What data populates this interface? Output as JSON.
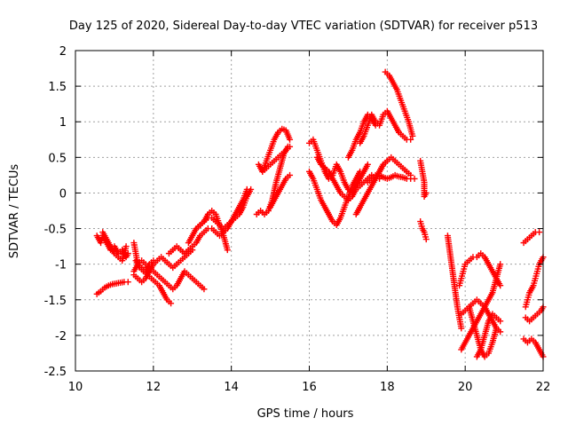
{
  "chart_data": {
    "type": "scatter",
    "title": "Day 125 of 2020, Sidereal Day-to-day VTEC variation (SDTVAR) for receiver p513",
    "xlabel": "GPS time / hours",
    "ylabel": "SDTVAR / TECUs",
    "xlim": [
      10,
      22
    ],
    "ylim": [
      -2.5,
      2
    ],
    "x_ticks": [
      10,
      12,
      14,
      16,
      18,
      20,
      22
    ],
    "x_tick_labels": [
      "10",
      "12",
      "14",
      "16",
      "18",
      "20",
      "22"
    ],
    "y_ticks": [
      -2.5,
      -2,
      -1.5,
      -1,
      -0.5,
      0,
      0.5,
      1,
      1.5,
      2
    ],
    "y_tick_labels": [
      "-2.5",
      "-2",
      "-1.5",
      "-1",
      "-0.5",
      "0",
      "0.5",
      "1",
      "1.5",
      "2"
    ],
    "grid": true,
    "marker": "+",
    "color": "#ff0000",
    "series": [
      {
        "name": "s1",
        "x": [
          10.55,
          10.6,
          10.65,
          10.7,
          10.8,
          10.9,
          11.0,
          11.1,
          11.2,
          11.3,
          11.35
        ],
        "y": [
          -0.6,
          -0.65,
          -0.7,
          -0.6,
          -0.7,
          -0.8,
          -0.75,
          -0.85,
          -0.8,
          -0.9,
          -0.85
        ]
      },
      {
        "name": "s2",
        "x": [
          10.55,
          10.65,
          10.75,
          10.85,
          10.95,
          11.05,
          11.15,
          11.25,
          11.35
        ],
        "y": [
          -1.42,
          -1.38,
          -1.33,
          -1.3,
          -1.28,
          -1.27,
          -1.26,
          -1.25,
          -1.25
        ]
      },
      {
        "name": "s3",
        "x": [
          10.7,
          10.8,
          10.9,
          11.0,
          11.1,
          11.2,
          11.3
        ],
        "y": [
          -0.55,
          -0.65,
          -0.75,
          -0.85,
          -0.9,
          -0.95,
          -0.75
        ]
      },
      {
        "name": "s4",
        "x": [
          11.5,
          11.6,
          11.7,
          11.8,
          11.9,
          12.0,
          12.1,
          12.2,
          12.3,
          12.4,
          12.5,
          12.6,
          12.7,
          12.8,
          12.9,
          13.0,
          13.1,
          13.2,
          13.3
        ],
        "y": [
          -1.1,
          -1.0,
          -0.95,
          -1.0,
          -1.05,
          -1.1,
          -1.15,
          -1.2,
          -1.25,
          -1.3,
          -1.35,
          -1.3,
          -1.2,
          -1.1,
          -1.15,
          -1.2,
          -1.25,
          -1.3,
          -1.35
        ]
      },
      {
        "name": "s5",
        "x": [
          11.5,
          11.6,
          11.7,
          11.8,
          11.9,
          12.0,
          12.1,
          12.2,
          12.3,
          12.4,
          12.5,
          12.6,
          12.7,
          12.8,
          12.9,
          13.0
        ],
        "y": [
          -1.15,
          -1.2,
          -1.25,
          -1.2,
          -1.1,
          -1.0,
          -0.95,
          -0.9,
          -0.95,
          -1.0,
          -1.05,
          -1.0,
          -0.95,
          -0.9,
          -0.85,
          -0.8
        ]
      },
      {
        "name": "s6",
        "x": [
          11.55,
          11.65,
          11.75,
          11.85,
          11.95,
          12.05,
          12.15,
          12.25,
          12.35,
          12.45
        ],
        "y": [
          -0.95,
          -1.05,
          -1.1,
          -1.15,
          -1.2,
          -1.25,
          -1.3,
          -1.4,
          -1.5,
          -1.55
        ]
      },
      {
        "name": "s7",
        "x": [
          11.5,
          11.55,
          11.6,
          11.7,
          11.8,
          11.9,
          12.0
        ],
        "y": [
          -0.7,
          -0.85,
          -1.0,
          -1.05,
          -1.1,
          -1.0,
          -0.95
        ]
      },
      {
        "name": "s8",
        "x": [
          12.4,
          12.5,
          12.6,
          12.7,
          12.8,
          12.9,
          13.0,
          13.1,
          13.2,
          13.3,
          13.4,
          13.5,
          13.6,
          13.7,
          13.8,
          13.9,
          14.0,
          14.1,
          14.2,
          14.3,
          14.4
        ],
        "y": [
          -0.85,
          -0.8,
          -0.75,
          -0.8,
          -0.85,
          -0.8,
          -0.75,
          -0.7,
          -0.6,
          -0.55,
          -0.5,
          -0.5,
          -0.55,
          -0.6,
          -0.55,
          -0.5,
          -0.4,
          -0.3,
          -0.2,
          -0.1,
          0.05
        ]
      },
      {
        "name": "s9",
        "x": [
          13.1,
          13.2,
          13.3,
          13.4,
          13.5,
          13.6,
          13.7,
          13.8,
          13.9,
          14.0,
          14.1,
          14.2,
          14.3,
          14.4,
          14.5
        ],
        "y": [
          -0.5,
          -0.45,
          -0.4,
          -0.35,
          -0.35,
          -0.4,
          -0.45,
          -0.5,
          -0.45,
          -0.4,
          -0.35,
          -0.3,
          -0.2,
          -0.05,
          0.05
        ]
      },
      {
        "name": "s10",
        "x": [
          12.9,
          13.0,
          13.1,
          13.2,
          13.3,
          13.4,
          13.5,
          13.6,
          13.7,
          13.8,
          13.9
        ],
        "y": [
          -0.7,
          -0.6,
          -0.5,
          -0.45,
          -0.4,
          -0.3,
          -0.25,
          -0.3,
          -0.45,
          -0.6,
          -0.8
        ]
      },
      {
        "name": "s11",
        "x": [
          14.65,
          14.75,
          14.85,
          14.95,
          15.05,
          15.15,
          15.25,
          15.35,
          15.45
        ],
        "y": [
          -0.3,
          -0.25,
          -0.3,
          -0.25,
          -0.1,
          0.15,
          0.35,
          0.55,
          0.65
        ]
      },
      {
        "name": "s12",
        "x": [
          14.7,
          14.8,
          14.9,
          15.0,
          15.1,
          15.2,
          15.3,
          15.4,
          15.5
        ],
        "y": [
          0.4,
          0.3,
          0.45,
          0.6,
          0.75,
          0.85,
          0.9,
          0.88,
          0.75
        ]
      },
      {
        "name": "s13",
        "x": [
          14.8,
          14.9,
          15.0,
          15.1,
          15.2,
          15.3,
          15.4,
          15.5
        ],
        "y": [
          0.3,
          0.35,
          0.4,
          0.45,
          0.5,
          0.55,
          0.6,
          0.65
        ]
      },
      {
        "name": "s14",
        "x": [
          15.0,
          15.1,
          15.2,
          15.3,
          15.4,
          15.5
        ],
        "y": [
          -0.2,
          -0.1,
          0.0,
          0.1,
          0.2,
          0.25
        ]
      },
      {
        "name": "s15",
        "x": [
          16.0,
          16.1,
          16.2,
          16.3,
          16.4,
          16.5,
          16.6,
          16.7,
          16.8,
          16.9,
          17.0,
          17.1,
          17.2,
          17.3,
          17.4,
          17.5
        ],
        "y": [
          0.7,
          0.75,
          0.6,
          0.45,
          0.3,
          0.2,
          0.25,
          0.4,
          0.3,
          0.15,
          0.05,
          0.0,
          0.1,
          0.2,
          0.3,
          0.4
        ]
      },
      {
        "name": "s16",
        "x": [
          16.0,
          16.1,
          16.2,
          16.3,
          16.4,
          16.5,
          16.6,
          16.7,
          16.8,
          16.9,
          17.0,
          17.1,
          17.2,
          17.3
        ],
        "y": [
          0.3,
          0.2,
          0.05,
          -0.1,
          -0.2,
          -0.3,
          -0.4,
          -0.45,
          -0.35,
          -0.2,
          -0.05,
          0.1,
          0.2,
          0.3
        ]
      },
      {
        "name": "s17",
        "x": [
          16.2,
          16.3,
          16.4,
          16.5,
          16.6,
          16.7,
          16.8,
          16.9,
          17.0,
          17.1,
          17.2,
          17.3,
          17.4,
          17.5,
          17.6,
          17.7,
          17.8
        ],
        "y": [
          0.5,
          0.4,
          0.35,
          0.3,
          0.2,
          0.1,
          0.0,
          -0.05,
          -0.1,
          -0.05,
          0.05,
          0.1,
          0.15,
          0.2,
          0.25,
          0.2,
          0.2
        ]
      },
      {
        "name": "s18",
        "x": [
          17.3,
          17.4,
          17.5,
          17.6,
          17.7,
          17.8,
          17.9,
          18.0,
          18.1,
          18.2,
          18.3,
          18.4,
          18.5,
          18.6
        ],
        "y": [
          0.7,
          0.8,
          0.95,
          1.1,
          1.0,
          0.95,
          1.1,
          1.15,
          1.05,
          0.95,
          0.85,
          0.8,
          0.75,
          0.75
        ]
      },
      {
        "name": "s19",
        "x": [
          17.0,
          17.1,
          17.2,
          17.3,
          17.4,
          17.5,
          17.6,
          17.7
        ],
        "y": [
          0.5,
          0.6,
          0.75,
          0.85,
          1.0,
          1.1,
          1.05,
          0.95
        ]
      },
      {
        "name": "s20",
        "x": [
          17.8,
          17.9,
          18.0,
          18.1,
          18.2,
          18.3,
          18.4,
          18.5,
          18.6
        ],
        "y": [
          0.3,
          0.4,
          0.45,
          0.5,
          0.45,
          0.4,
          0.35,
          0.3,
          0.25
        ]
      },
      {
        "name": "s21",
        "x": [
          17.5,
          17.6,
          17.7,
          17.8,
          17.9,
          18.0,
          18.1,
          18.2,
          18.3,
          18.4,
          18.5,
          18.6,
          18.7
        ],
        "y": [
          0.15,
          0.2,
          0.25,
          0.25,
          0.22,
          0.2,
          0.22,
          0.25,
          0.23,
          0.22,
          0.2,
          0.2,
          0.2
        ]
      },
      {
        "name": "s22",
        "x": [
          17.2,
          17.3,
          17.4,
          17.5,
          17.6,
          17.7,
          17.8,
          17.9,
          18.0
        ],
        "y": [
          -0.3,
          -0.2,
          -0.1,
          0.0,
          0.1,
          0.2,
          0.3,
          0.4,
          0.45
        ]
      },
      {
        "name": "s23",
        "x": [
          17.95,
          18.05,
          18.15,
          18.25,
          18.35,
          18.45,
          18.55,
          18.65
        ],
        "y": [
          1.7,
          1.65,
          1.55,
          1.45,
          1.3,
          1.15,
          1.0,
          0.8
        ]
      },
      {
        "name": "s24",
        "x": [
          18.85,
          18.9,
          18.95,
          18.95,
          19.0
        ],
        "y": [
          0.45,
          0.3,
          0.15,
          -0.05,
          0.0
        ]
      },
      {
        "name": "s25",
        "x": [
          18.85,
          18.9,
          18.95,
          19.0
        ],
        "y": [
          -0.4,
          -0.5,
          -0.55,
          -0.65
        ]
      },
      {
        "name": "s26",
        "x": [
          19.55,
          19.6,
          19.65,
          19.7,
          19.75,
          19.8,
          19.85,
          19.9
        ],
        "y": [
          -0.6,
          -0.8,
          -1.0,
          -1.2,
          -1.4,
          -1.6,
          -1.75,
          -1.9
        ]
      },
      {
        "name": "s27",
        "x": [
          19.85,
          19.9,
          19.95,
          20.0,
          20.1,
          20.2,
          20.3,
          20.4,
          20.5,
          20.6,
          20.7,
          20.8,
          20.9
        ],
        "y": [
          -1.3,
          -1.2,
          -1.1,
          -1.0,
          -0.95,
          -0.9,
          -0.9,
          -0.85,
          -0.9,
          -1.0,
          -1.1,
          -1.2,
          -1.3
        ]
      },
      {
        "name": "s28",
        "x": [
          19.9,
          20.0,
          20.1,
          20.2,
          20.3,
          20.4,
          20.5,
          20.6,
          20.7,
          20.8,
          20.9
        ],
        "y": [
          -1.7,
          -1.65,
          -1.6,
          -1.55,
          -1.5,
          -1.55,
          -1.6,
          -1.7,
          -1.8,
          -1.9,
          -1.95
        ]
      },
      {
        "name": "s29",
        "x": [
          19.9,
          20.0,
          20.1,
          20.2,
          20.3,
          20.4,
          20.5,
          20.6,
          20.7,
          20.8,
          20.9
        ],
        "y": [
          -2.2,
          -2.1,
          -2.0,
          -1.9,
          -1.8,
          -1.7,
          -1.6,
          -1.5,
          -1.4,
          -1.2,
          -1.0
        ]
      },
      {
        "name": "s30",
        "x": [
          20.1,
          20.2,
          20.3,
          20.4,
          20.5,
          20.6,
          20.7,
          20.8
        ],
        "y": [
          -1.6,
          -1.8,
          -2.0,
          -2.2,
          -2.3,
          -2.25,
          -2.1,
          -1.9
        ]
      },
      {
        "name": "s31",
        "x": [
          20.3,
          20.4,
          20.5,
          20.6,
          20.7,
          20.8,
          20.9
        ],
        "y": [
          -2.3,
          -2.2,
          -2.0,
          -1.8,
          -1.7,
          -1.75,
          -1.8
        ]
      },
      {
        "name": "s32",
        "x": [
          21.5,
          21.6,
          21.7,
          21.8,
          21.9
        ],
        "y": [
          -0.7,
          -0.65,
          -0.6,
          -0.55,
          -0.55
        ]
      },
      {
        "name": "s33",
        "x": [
          21.55,
          21.6,
          21.65,
          21.7,
          21.75,
          21.8,
          21.85,
          21.9,
          21.95,
          22.0
        ],
        "y": [
          -1.6,
          -1.5,
          -1.4,
          -1.35,
          -1.3,
          -1.2,
          -1.1,
          -1.0,
          -0.95,
          -0.9
        ]
      },
      {
        "name": "s34",
        "x": [
          21.55,
          21.65,
          21.75,
          21.85,
          21.95,
          22.0
        ],
        "y": [
          -1.75,
          -1.8,
          -1.75,
          -1.7,
          -1.65,
          -1.6
        ]
      },
      {
        "name": "s35",
        "x": [
          21.5,
          21.6,
          21.7,
          21.8,
          21.9,
          22.0
        ],
        "y": [
          -2.05,
          -2.1,
          -2.05,
          -2.1,
          -2.2,
          -2.3
        ]
      }
    ]
  }
}
